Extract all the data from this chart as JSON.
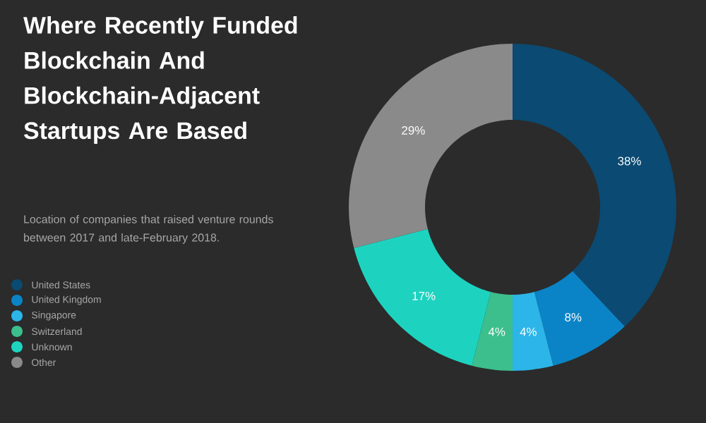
{
  "chart_data": {
    "type": "donut",
    "title": "Where Recently Funded Blockchain And Blockchain-Adjacent Startups Are Based",
    "subtitle": "Location of companies that raised venture rounds between 2017 and late-February 2018.",
    "categories": [
      "United States",
      "United Kingdom",
      "Singapore",
      "Switzerland",
      "Unknown",
      "Other"
    ],
    "values": [
      38,
      8,
      4,
      4,
      17,
      29
    ],
    "value_labels": [
      "38%",
      "8%",
      "4%",
      "4%",
      "17%",
      "29%"
    ],
    "colors": [
      "#0b4a72",
      "#0a84c6",
      "#2cb5e8",
      "#3cbf8c",
      "#1dd3c0",
      "#8a8a8a"
    ],
    "legend": "left"
  }
}
